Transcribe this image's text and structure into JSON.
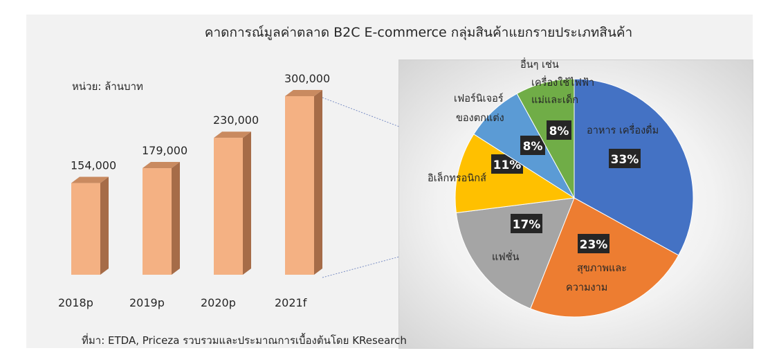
{
  "title": "คาดการณ์มูลค่าตลาด B2C E-commerce กลุ่มสินค้าแยกรายประเภทสินค้า",
  "unit_label": "หน่วย: ล้านบาท",
  "source": "ที่มา: ETDA, Priceza รวบรวมและประมาณการเบื้องต้นโดย KResearch",
  "colors": {
    "bar_front": "#f4b183",
    "bar_side": "#a66c48",
    "bar_top": "#c98a60",
    "label_box": "#262626"
  },
  "chart_data": [
    {
      "type": "bar",
      "categories": [
        "2018p",
        "2019p",
        "2020p",
        "2021f"
      ],
      "values": [
        154000,
        179000,
        230000,
        300000
      ],
      "value_labels": [
        "154,000",
        "179,000",
        "230,000",
        "300,000"
      ],
      "ylabel": "หน่วย: ล้านบาท"
    },
    {
      "type": "pie",
      "slices": [
        {
          "label_lines": [
            "อาหาร เครื่องดื่ม"
          ],
          "value": 33,
          "pct_label": "33%",
          "color": "#4472c4"
        },
        {
          "label_lines": [
            "สุขภาพและ",
            "ความงาม"
          ],
          "value": 23,
          "pct_label": "23%",
          "color": "#ed7d31"
        },
        {
          "label_lines": [
            "แฟชั่น"
          ],
          "value": 17,
          "pct_label": "17%",
          "color": "#a5a5a5"
        },
        {
          "label_lines": [
            "อิเล็กทรอนิกส์"
          ],
          "value": 11,
          "pct_label": "11%",
          "color": "#ffc000"
        },
        {
          "label_lines": [
            "เฟอร์นิเจอร์",
            "ของตกแต่ง"
          ],
          "value": 8,
          "pct_label": "8%",
          "color": "#5b9bd5"
        },
        {
          "label_lines": [
            "อื่นๆ เช่น",
            "เครื่องใช้ไฟฟ้า",
            "แม่และเด็ก"
          ],
          "value": 8,
          "pct_label": "8%",
          "color": "#70ad47"
        }
      ]
    }
  ]
}
